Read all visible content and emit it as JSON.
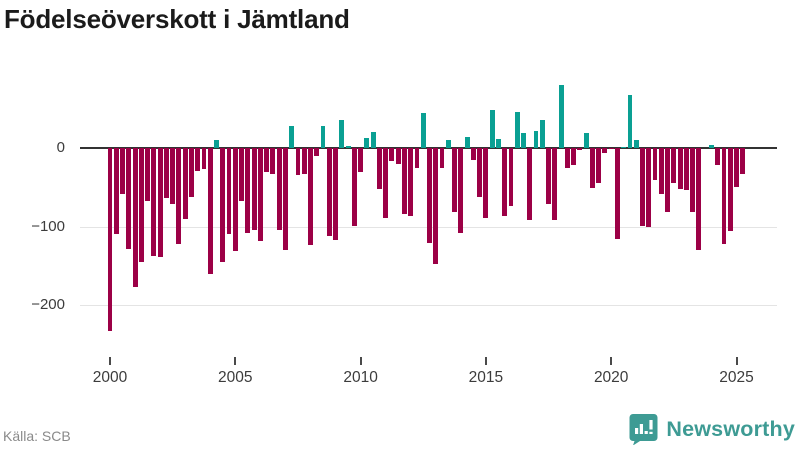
{
  "title": "Födelseöverskott i Jämtland",
  "footer": {
    "source": "Källa: SCB",
    "brand": "Newsworthy"
  },
  "colors": {
    "positive": "#0aa093",
    "negative": "#9c0046",
    "zero_line": "#333333",
    "gridline": "#e4e4e4",
    "title_text": "#1b1b1b",
    "axis_text": "#3c3c3c",
    "source_text": "#8a8a8a",
    "brand_teal": "#3e9b94"
  },
  "chart_data": {
    "type": "bar",
    "title": "Födelseöverskott i Jämtland",
    "xlabel": "",
    "ylabel": "",
    "frequency": "quarterly",
    "start_period": "2000 K1",
    "end_period": "2025 K2",
    "y_ticks": [
      {
        "value": 0,
        "label": "0"
      },
      {
        "value": -100,
        "label": "−100"
      },
      {
        "value": -200,
        "label": "−200"
      }
    ],
    "x_ticks": [
      {
        "year": 2000,
        "label": "2000"
      },
      {
        "year": 2005,
        "label": "2005"
      },
      {
        "year": 2010,
        "label": "2010"
      },
      {
        "year": 2015,
        "label": "2015"
      },
      {
        "year": 2020,
        "label": "2020"
      },
      {
        "year": 2025,
        "label": "2025"
      }
    ],
    "ylim": [
      -245,
      95
    ],
    "grid": true,
    "legend": false,
    "values": [
      -233,
      -110,
      -59,
      -129,
      -177,
      -145,
      -67,
      -138,
      -139,
      -64,
      -71,
      -122,
      -90,
      -62,
      -29,
      -27,
      -161,
      10,
      -145,
      -109,
      -131,
      -68,
      -108,
      -104,
      -119,
      -30,
      -33,
      -104,
      -130,
      28,
      -34,
      -33,
      -123,
      -10,
      28,
      -112,
      -117,
      36,
      3,
      -99,
      -30,
      13,
      21,
      -52,
      -89,
      -17,
      -21,
      -84,
      -87,
      -26,
      45,
      -121,
      -148,
      -26,
      10,
      -82,
      -108,
      14,
      -15,
      -63,
      -89,
      49,
      12,
      -87,
      -74,
      46,
      19,
      -92,
      22,
      36,
      -71,
      -92,
      80,
      -26,
      -22,
      -2,
      19,
      -51,
      -44,
      -6,
      -1,
      -116,
      1,
      68,
      10,
      -99,
      -100,
      -41,
      -59,
      -82,
      -44,
      -52,
      -54,
      -81,
      -130,
      0,
      4,
      -22,
      -122,
      -106,
      -50,
      -33
    ]
  }
}
